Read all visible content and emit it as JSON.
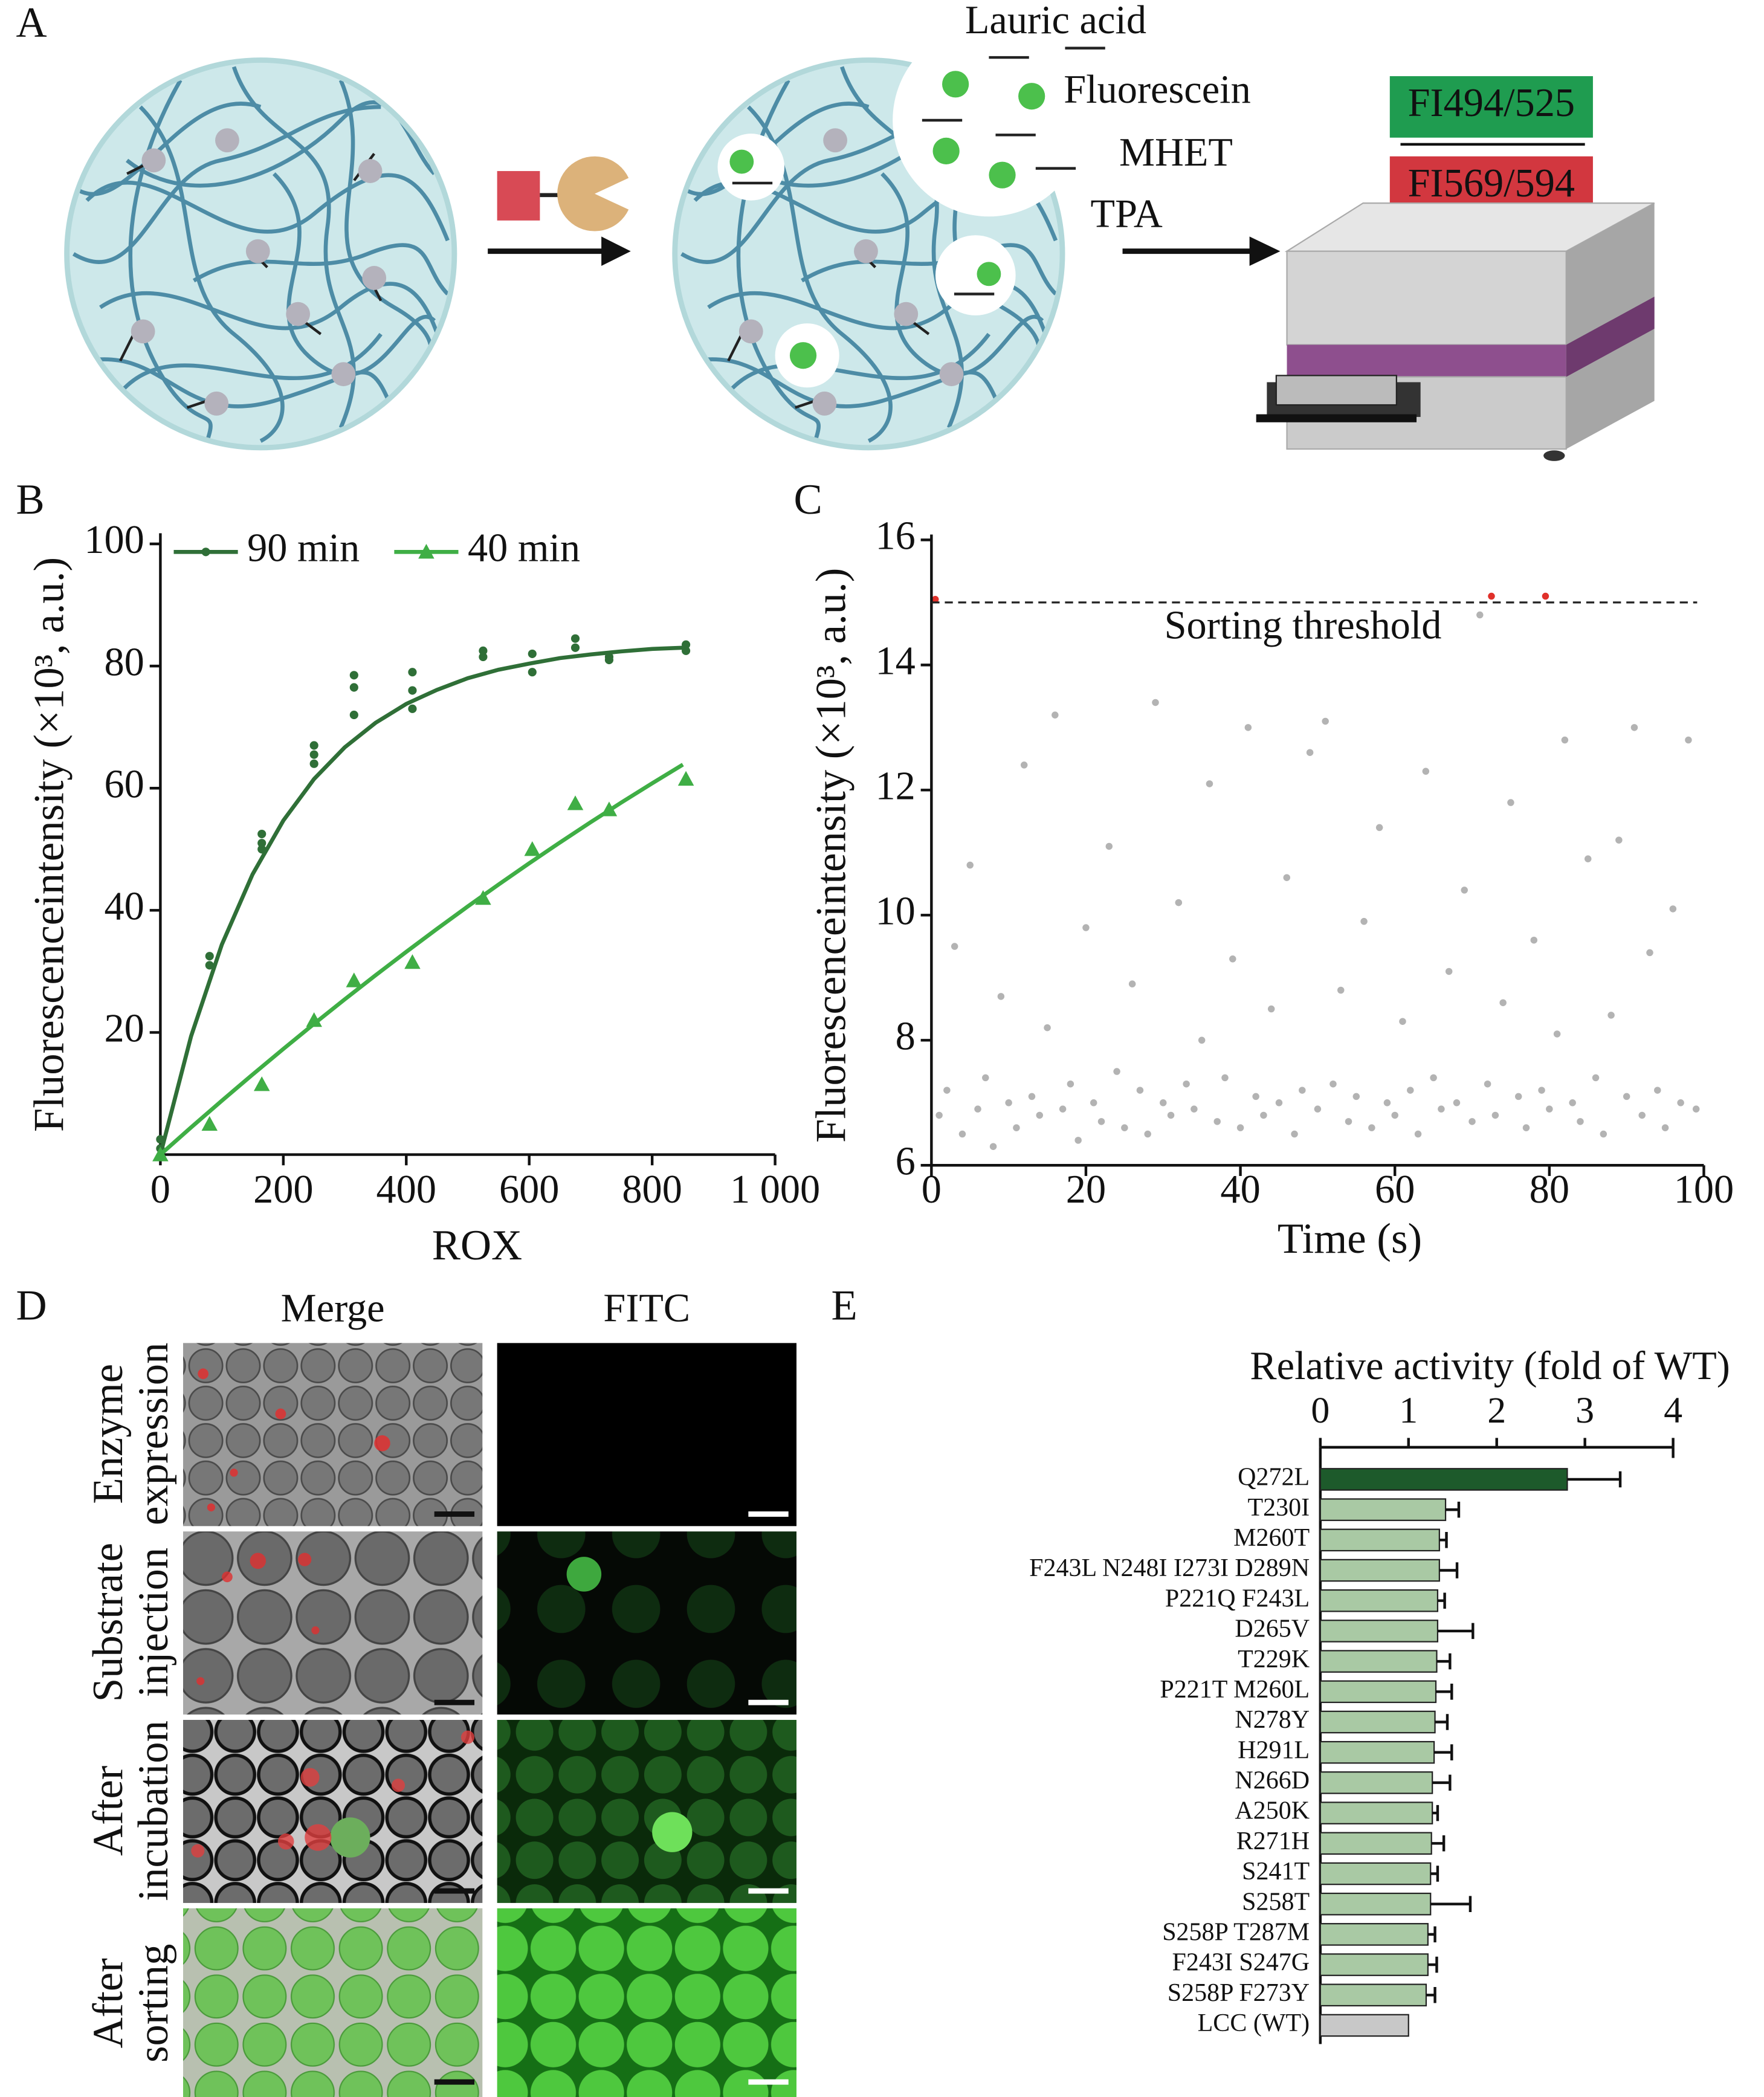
{
  "panel_labels": [
    "A",
    "B",
    "C",
    "D",
    "E"
  ],
  "diagram": {
    "molecules": [
      "Lauric acid",
      "Fluorescein",
      "MHET",
      "TPA"
    ],
    "channels": [
      "FI494/525",
      "FI569/594"
    ]
  },
  "microscopy": {
    "columns": [
      "Merge",
      "FITC"
    ],
    "rows": [
      [
        "Enzyme",
        "expression"
      ],
      [
        "Substrate",
        "injection"
      ],
      [
        "After",
        "incubation"
      ],
      [
        "After",
        "sorting"
      ]
    ]
  },
  "chart_data": [
    {
      "type": "line",
      "y_label": "Fluorescenceintensity (×10³, a.u.)",
      "x_label": "ROX",
      "xlim": [
        0,
        1000
      ],
      "xticks": [
        0,
        200,
        400,
        600,
        800,
        {
          "value": 1000,
          "label": "1 000"
        }
      ],
      "ylim": [
        0,
        100
      ],
      "yticks": [
        20,
        40,
        60,
        80,
        100
      ],
      "legend": "top",
      "series": [
        {
          "name": "90 min",
          "color": "#2f6f37",
          "marker": "circle",
          "x": [
            0,
            0,
            80,
            80,
            165,
            165,
            165,
            250,
            250,
            250,
            315,
            315,
            315,
            410,
            410,
            410,
            525,
            525,
            605,
            605,
            675,
            675,
            730,
            730,
            855,
            855
          ],
          "values": [
            1,
            2.5,
            31,
            32.5,
            50,
            51,
            52.5,
            64,
            65.5,
            67,
            72,
            76.5,
            78.5,
            73,
            76,
            79,
            81.5,
            82.5,
            79,
            82,
            83,
            84.5,
            81,
            81.5,
            82.5,
            83.5
          ],
          "fit_x": [
            0,
            50,
            100,
            150,
            200,
            250,
            300,
            350,
            400,
            450,
            500,
            550,
            600,
            650,
            700,
            750,
            800,
            850
          ],
          "fit_values": [
            0,
            19.4,
            34.4,
            45.9,
            54.7,
            61.5,
            66.7,
            70.7,
            73.8,
            76.1,
            78,
            79.4,
            80.4,
            81.3,
            81.9,
            82.4,
            82.8,
            83
          ]
        },
        {
          "name": "40 min",
          "color": "#3fae45",
          "marker": "triangle",
          "x": [
            0,
            80,
            165,
            250,
            315,
            410,
            525,
            605,
            675,
            730,
            855
          ],
          "values": [
            0,
            5,
            11.5,
            22,
            28.5,
            31.5,
            42,
            50,
            57.5,
            56.5,
            61.5
          ],
          "fit_x": [
            0,
            50,
            100,
            150,
            200,
            250,
            300,
            350,
            400,
            450,
            500,
            550,
            600,
            650,
            700,
            750,
            800,
            850
          ],
          "fit_values": [
            0,
            4.46,
            8.83,
            13.11,
            17.3,
            21.41,
            25.43,
            29.36,
            33.2,
            36.96,
            40.63,
            44.21,
            47.7,
            51.11,
            54.43,
            57.66,
            60.8,
            63.86
          ]
        }
      ]
    },
    {
      "type": "scatter",
      "y_label": "Fluorescenceintensity (×10³, a.u.)",
      "x_label": "Time (s)",
      "xlim": [
        0,
        100
      ],
      "xticks": [
        0,
        20,
        40,
        60,
        80,
        100
      ],
      "ylim": [
        6,
        16
      ],
      "yticks": [
        6,
        8,
        10,
        12,
        14,
        16
      ],
      "threshold": {
        "label": "Sorting threshold",
        "value": 15
      },
      "series": [
        {
          "color": "#9a9a9a",
          "x": [
            1,
            2,
            3,
            4,
            5,
            6,
            7,
            8,
            9,
            10,
            11,
            12,
            13,
            14,
            15,
            16,
            17,
            18,
            19,
            20,
            21,
            22,
            23,
            24,
            25,
            26,
            27,
            28,
            29,
            30,
            31,
            32,
            33,
            34,
            35,
            36,
            37,
            38,
            39,
            40,
            41,
            42,
            43,
            44,
            45,
            46,
            47,
            48,
            49,
            50,
            51,
            52,
            53,
            54,
            55,
            56,
            57,
            58,
            59,
            60,
            61,
            62,
            63,
            64,
            65,
            66,
            67,
            68,
            69,
            70,
            71,
            72,
            73,
            74,
            75,
            76,
            77,
            78,
            79,
            80,
            81,
            82,
            83,
            84,
            85,
            86,
            87,
            88,
            89,
            90,
            91,
            92,
            93,
            94,
            95,
            96,
            97,
            98,
            99
          ],
          "values": [
            6.8,
            7.2,
            9.5,
            6.5,
            10.8,
            6.9,
            7.4,
            6.3,
            8.7,
            7.0,
            6.6,
            12.4,
            7.1,
            6.8,
            8.2,
            13.2,
            6.9,
            7.3,
            6.4,
            9.8,
            7.0,
            6.7,
            11.1,
            7.5,
            6.6,
            8.9,
            7.2,
            6.5,
            13.4,
            7.0,
            6.8,
            10.2,
            7.3,
            6.9,
            8.0,
            12.1,
            6.7,
            7.4,
            9.3,
            6.6,
            13.0,
            7.1,
            6.8,
            8.5,
            7.0,
            10.6,
            6.5,
            7.2,
            12.6,
            6.9,
            13.1,
            7.3,
            8.8,
            6.7,
            7.1,
            9.9,
            6.6,
            11.4,
            7.0,
            6.8,
            8.3,
            7.2,
            6.5,
            12.3,
            7.4,
            6.9,
            9.1,
            7.0,
            10.4,
            6.7,
            14.8,
            7.3,
            6.8,
            8.6,
            11.8,
            7.1,
            6.6,
            9.6,
            7.2,
            6.9,
            8.1,
            12.8,
            7.0,
            6.7,
            10.9,
            7.4,
            6.5,
            8.4,
            11.2,
            7.1,
            13.0,
            6.8,
            9.4,
            7.2,
            6.6,
            10.1,
            7.0,
            12.8,
            6.9
          ]
        },
        {
          "color": "#e0302a",
          "x": [
            0.5,
            72.5,
            79.5
          ],
          "values": [
            15.05,
            15.1,
            15.1
          ]
        }
      ]
    },
    {
      "type": "bar",
      "orientation": "horizontal",
      "title": "Relative activity (fold of WT)",
      "xlim": [
        0,
        4
      ],
      "xticks": [
        0,
        1,
        2,
        3,
        4
      ],
      "categories": [
        "Q272L",
        "T230I",
        "M260T",
        "F243L N248I I273I D289N",
        "P221Q F243L",
        "D265V",
        "T229K",
        "P221T M260L",
        "N278Y",
        "H291L",
        "N266D",
        "A250K",
        "R271H",
        "S241T",
        "S258T",
        "S258P T287M",
        "F243I S247G",
        "S258P F273Y",
        "LCC (WT)"
      ],
      "values": [
        2.8,
        1.42,
        1.35,
        1.35,
        1.33,
        1.33,
        1.32,
        1.31,
        1.3,
        1.29,
        1.27,
        1.27,
        1.26,
        1.25,
        1.25,
        1.22,
        1.22,
        1.2,
        1.0
      ],
      "errors": [
        0.6,
        0.15,
        0.08,
        0.2,
        0.08,
        0.4,
        0.15,
        0.18,
        0.14,
        0.2,
        0.2,
        0.06,
        0.14,
        0.08,
        0.45,
        0.08,
        0.1,
        0.1,
        null
      ],
      "colors": [
        "#1d5a2b",
        "#a9c9a4",
        "#a9c9a4",
        "#a9c9a4",
        "#a9c9a4",
        "#a9c9a4",
        "#a9c9a4",
        "#a9c9a4",
        "#a9c9a4",
        "#a9c9a4",
        "#a9c9a4",
        "#a9c9a4",
        "#a9c9a4",
        "#a9c9a4",
        "#a9c9a4",
        "#a9c9a4",
        "#a9c9a4",
        "#a9c9a4",
        "#c8c8c8"
      ]
    }
  ]
}
